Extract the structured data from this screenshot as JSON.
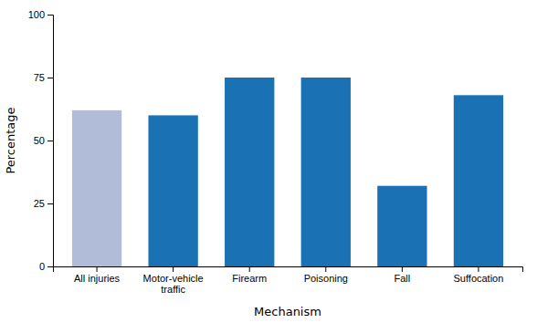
{
  "chart_data": {
    "type": "bar",
    "categories": [
      "All injuries",
      "Motor-vehicle\ntraffic",
      "Firearm",
      "Poisoning",
      "Fall",
      "Suffocation"
    ],
    "values": [
      62,
      60,
      75,
      75,
      32,
      68
    ],
    "colors": [
      "#b0bcd8",
      "#1a72b5",
      "#1a72b5",
      "#1a72b5",
      "#1a72b5",
      "#1a72b5"
    ],
    "xlabel": "Mechanism",
    "ylabel": "Percentage",
    "ylim": [
      0,
      100
    ],
    "yticks": [
      0,
      25,
      50,
      75,
      100
    ],
    "grid": false
  }
}
